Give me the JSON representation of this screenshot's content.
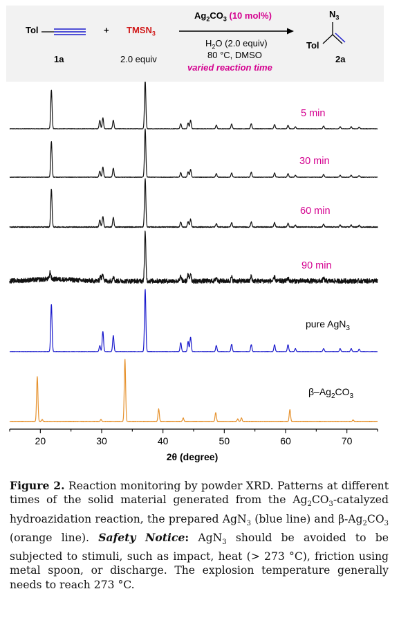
{
  "scheme": {
    "reactant1": "Tol",
    "reactant1_id": "1a",
    "plus": "+",
    "reagent": "TMSN",
    "reagent_sub": "3",
    "reagent_equiv": "2.0 equiv",
    "catalyst": "Ag",
    "catalyst_sub1": "2",
    "catalyst_mid": "CO",
    "catalyst_sub2": "3",
    "catalyst_loading": "(10 mol%)",
    "cond1_a": "H",
    "cond1_sub": "2",
    "cond1_b": "O (2.0 equiv)",
    "cond2": "80 °C, DMSO",
    "cond3": "varied reaction time",
    "product_group": "N",
    "product_group_sub": "3",
    "product_tol": "Tol",
    "product_id": "2a"
  },
  "colors": {
    "black": "#111111",
    "blue": "#1a1acc",
    "orange": "#e6922e",
    "magenta": "#d4008f"
  },
  "chart_data": {
    "type": "line",
    "xlabel": "2θ (degree)",
    "xlim": [
      15,
      75
    ],
    "xticks": [
      20,
      30,
      40,
      50,
      60,
      70
    ],
    "yaxis": "none (stacked patterns, arbitrary intensity)",
    "series": [
      {
        "name": "5 min",
        "color": "#111111",
        "noise": 0.006,
        "peaks": [
          [
            21.8,
            1.0
          ],
          [
            29.7,
            0.22
          ],
          [
            30.2,
            0.28
          ],
          [
            31.9,
            0.22
          ],
          [
            37.1,
            1.25
          ],
          [
            42.9,
            0.13
          ],
          [
            44.1,
            0.15
          ],
          [
            44.5,
            0.22
          ],
          [
            48.7,
            0.09
          ],
          [
            51.2,
            0.12
          ],
          [
            54.4,
            0.13
          ],
          [
            58.2,
            0.11
          ],
          [
            60.4,
            0.09
          ],
          [
            61.6,
            0.05
          ],
          [
            66.2,
            0.07
          ],
          [
            68.9,
            0.05
          ],
          [
            70.7,
            0.05
          ],
          [
            72.0,
            0.04
          ]
        ]
      },
      {
        "name": "30 min",
        "color": "#111111",
        "noise": 0.006,
        "peaks": [
          [
            21.8,
            0.92
          ],
          [
            29.7,
            0.16
          ],
          [
            30.2,
            0.26
          ],
          [
            31.9,
            0.23
          ],
          [
            37.1,
            1.25
          ],
          [
            42.9,
            0.12
          ],
          [
            44.1,
            0.14
          ],
          [
            44.5,
            0.2
          ],
          [
            48.7,
            0.09
          ],
          [
            51.2,
            0.11
          ],
          [
            54.4,
            0.13
          ],
          [
            58.2,
            0.11
          ],
          [
            60.4,
            0.09
          ],
          [
            61.6,
            0.05
          ],
          [
            66.2,
            0.07
          ],
          [
            68.9,
            0.05
          ],
          [
            70.7,
            0.05
          ],
          [
            72.0,
            0.04
          ]
        ]
      },
      {
        "name": "60 min",
        "color": "#111111",
        "noise": 0.012,
        "peaks": [
          [
            21.8,
            0.98
          ],
          [
            29.7,
            0.18
          ],
          [
            30.2,
            0.27
          ],
          [
            31.9,
            0.24
          ],
          [
            37.1,
            1.25
          ],
          [
            42.9,
            0.13
          ],
          [
            44.1,
            0.14
          ],
          [
            44.5,
            0.2
          ],
          [
            48.7,
            0.09
          ],
          [
            51.2,
            0.11
          ],
          [
            54.4,
            0.13
          ],
          [
            58.2,
            0.11
          ],
          [
            60.4,
            0.1
          ],
          [
            61.6,
            0.05
          ],
          [
            66.2,
            0.07
          ],
          [
            68.9,
            0.05
          ],
          [
            70.7,
            0.05
          ],
          [
            72.0,
            0.04
          ]
        ]
      },
      {
        "name": "90 min",
        "color": "#111111",
        "noise": 0.06,
        "peaks": [
          [
            21.6,
            0.18
          ],
          [
            29.8,
            0.12
          ],
          [
            30.2,
            0.2
          ],
          [
            31.9,
            0.13
          ],
          [
            37.1,
            1.25
          ],
          [
            42.9,
            0.12
          ],
          [
            44.1,
            0.15
          ],
          [
            44.5,
            0.2
          ],
          [
            48.7,
            0.09
          ],
          [
            51.2,
            0.1
          ],
          [
            54.4,
            0.12
          ],
          [
            58.2,
            0.1
          ],
          [
            60.4,
            0.08
          ],
          [
            66.2,
            0.07
          ]
        ]
      },
      {
        "name": "pure AgN3",
        "color": "#1a1acc",
        "noise": 0.005,
        "peaks": [
          [
            21.8,
            0.95
          ],
          [
            29.7,
            0.12
          ],
          [
            30.2,
            0.41
          ],
          [
            31.9,
            0.32
          ],
          [
            37.1,
            1.25
          ],
          [
            42.9,
            0.18
          ],
          [
            44.1,
            0.2
          ],
          [
            44.5,
            0.29
          ],
          [
            48.7,
            0.12
          ],
          [
            51.2,
            0.15
          ],
          [
            54.4,
            0.14
          ],
          [
            58.2,
            0.14
          ],
          [
            60.4,
            0.14
          ],
          [
            61.6,
            0.06
          ],
          [
            66.2,
            0.06
          ],
          [
            68.9,
            0.06
          ],
          [
            70.7,
            0.06
          ],
          [
            72.0,
            0.05
          ]
        ]
      },
      {
        "name": "β-Ag2CO3",
        "color": "#e6922e",
        "noise": 0.006,
        "peaks": [
          [
            19.5,
            0.9
          ],
          [
            20.3,
            0.04
          ],
          [
            29.9,
            0.04
          ],
          [
            33.8,
            1.25
          ],
          [
            39.3,
            0.25
          ],
          [
            43.3,
            0.07
          ],
          [
            48.6,
            0.18
          ],
          [
            52.2,
            0.05
          ],
          [
            52.8,
            0.07
          ],
          [
            60.7,
            0.24
          ],
          [
            71.0,
            0.03
          ]
        ]
      }
    ]
  },
  "labels": {
    "t5": "5 min",
    "t30": "30 min",
    "t60": "60 min",
    "t90": "90 min",
    "pure_a": "pure AgN",
    "pure_sub": "3",
    "beta_a": "β–Ag",
    "beta_sub1": "2",
    "beta_b": "CO",
    "beta_sub2": "3"
  },
  "caption": {
    "fig": "Figure 2.",
    "p1": " Reaction monitoring by powder XRD. Patterns at different times of the solid material generated from the Ag",
    "s1": "2",
    "p2": "CO",
    "s2": "3",
    "p3": "-catalyzed hydroazidation reaction, the prepared AgN",
    "s3": "3",
    "p4": " (blue line) and β-Ag",
    "s4": "2",
    "p5": "CO",
    "s5": "3",
    "p6": " (orange line). ",
    "safety": "Safety Notice",
    "colon": ":",
    "p7": " AgN",
    "s7": "3",
    "p8": " should be avoided to be subjected to stimuli, such as impact, heat (> 273 °C), friction using metal spoon, or discharge. The explosion temperature generally needs to reach 273 °C."
  }
}
